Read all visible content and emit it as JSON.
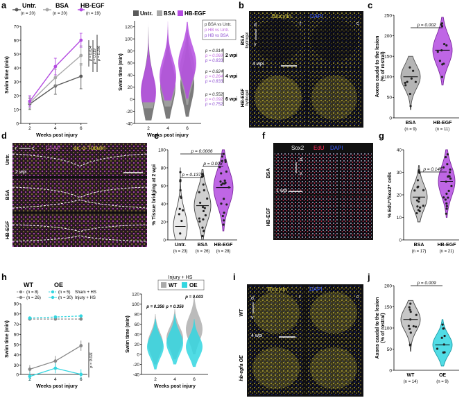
{
  "panels": {
    "a": "a",
    "b": "b",
    "c": "c",
    "d": "d",
    "e": "e",
    "f": "f",
    "g": "g",
    "h": "h",
    "i": "i",
    "j": "j"
  },
  "colors": {
    "untr": "#5a5a5a",
    "bsa": "#a8a8a8",
    "hbegf": "#b44be1",
    "wt": "#9a9a9a",
    "oe": "#33d6e0",
    "yellow": "#e8d83a",
    "blue": "#3a5bff",
    "magenta": "#d45ad8",
    "red": "#ff2a55"
  },
  "panel_a_legend": {
    "untr": "Untr.",
    "untr_n": "(n = 20)",
    "bsa": "BSA",
    "bsa_n": "(n = 20)",
    "hb": "HB-EGF",
    "hb_n": "(n = 19)"
  },
  "panel_a_stats": {
    "p1": "p = 0.024",
    "p2": "p = 0.219",
    "p3": "p = 0.296"
  },
  "panel_a2_legend": {
    "untr": "Untr.",
    "bsa": "BSA",
    "hb": "HB-EGF"
  },
  "panel_a2_box": {
    "l1": "p BSA vs Untr.",
    "l2": "p HB vs Untr.",
    "l3": "p HB vs BSA"
  },
  "panel_a2_pvals": {
    "w2": [
      "p = 0.914",
      "p = 0.069",
      "p = 0.833"
    ],
    "w2_label": "2 wpi",
    "w4": [
      "p = 0.624",
      "p = 0.264",
      "p = 0.833"
    ],
    "w4_label": "4 wpi",
    "w6": [
      "p = 0.552",
      "p = 0.092",
      "p = 0.752"
    ],
    "w6_label": "6 wpi"
  },
  "panel_b": {
    "title1": "Biocytin",
    "title2": "DAPI",
    "d": "d",
    "v": "v",
    "r": "r",
    "c": "c",
    "row1": "BSA hydrogel",
    "row1a": "BSA",
    "row1b": "hydrogel",
    "row2a": "HB-EGF",
    "row2b": "hydrogel",
    "wpi": "4 wpi"
  },
  "panel_c": {
    "ylabel1": "Axons caudal to the lesion",
    "ylabel2": "(% of rostral)",
    "p": "p = 0.002",
    "g1": "BSA",
    "g1n": "(n = 9)",
    "g2": "HB-EGF",
    "g2n": "(n = 11)"
  },
  "panel_d": {
    "t1": "GFAP",
    "t2": "ac. α-Tubulin",
    "r": "r",
    "c": "c",
    "row1": "Untr.",
    "row2": "BSA",
    "row3": "HB-EGF",
    "wpi": "2 wpi"
  },
  "panel_e": {
    "ylabel": "% Tissue bridging at 2 wpi",
    "p1": "p = 0.0006",
    "p2": "p = 0.008",
    "p3": "p = 0.137",
    "g1": "Untr.",
    "g1n": "(n = 23)",
    "g2": "BSA",
    "g2n": "(n = 26)",
    "g3": "HB-EGF",
    "g3n": "(n = 28)"
  },
  "panel_f": {
    "t1": "Sox2",
    "t2": "EdU",
    "t3": "DAPI",
    "d": "d",
    "v": "v",
    "row1": "BSA",
    "row2": "HB-EGF",
    "wpi": "1 wpi"
  },
  "panel_g": {
    "ylabel": "% EdU⁺/Sox2⁺ cells",
    "p": "p = 0.145",
    "g1": "BSA",
    "g1n": "(n = 17)",
    "g2": "HB-EGF",
    "g2n": "(n = 21)"
  },
  "panel_h_legend": {
    "wt": "WT",
    "oe": "OE",
    "n1": "(n = 8)",
    "n2": "(n = 5)",
    "n3": "(n = 26)",
    "n4": "(n = 30)",
    "sham": "Sham + HS",
    "inj": "Injury + HS",
    "p": "p = 0.011"
  },
  "panel_h2": {
    "title": "Injury + HS",
    "wt": "WT",
    "oe": "OE",
    "p1": "p = 0.356",
    "p2": "p = 0.356",
    "p3": "p = 0.003"
  },
  "panel_i": {
    "t1": "Biocytin",
    "t2": "DAPI",
    "d": "d",
    "v": "v",
    "r": "r",
    "c": "c",
    "row1": "WT",
    "row2": "hb-egfa OE",
    "wpi": "4 wpi"
  },
  "panel_j": {
    "ylabel1": "Axons caudal to the lesion",
    "ylabel2": "(% of rostral)",
    "p": "p = 0.009",
    "g1": "WT",
    "g1n": "(n = 14)",
    "g2": "OE",
    "g2n": "(n = 9)"
  },
  "chart_data": [
    {
      "id": "a_line",
      "type": "line",
      "xlabel": "Weeks post injury",
      "ylabel": "Swim time (min)",
      "x": [
        2,
        4,
        6
      ],
      "ylim": [
        0,
        70
      ],
      "series": [
        {
          "name": "Untr.",
          "values": [
            14,
            27,
            34
          ],
          "err": [
            4,
            6,
            9
          ]
        },
        {
          "name": "BSA",
          "values": [
            15,
            33,
            49
          ],
          "err": [
            4,
            6,
            7
          ]
        },
        {
          "name": "HB-EGF",
          "values": [
            16,
            41,
            60
          ],
          "err": [
            4,
            6,
            5
          ]
        }
      ]
    },
    {
      "id": "a_violin",
      "type": "violin",
      "xlabel": "Weeks post injury",
      "ylabel": "Swim time (min)",
      "categories": [
        "2",
        "4",
        "6"
      ],
      "ylim": [
        -40,
        130
      ],
      "series": [
        {
          "name": "Untr.",
          "median": [
            10,
            22,
            25
          ]
        },
        {
          "name": "BSA",
          "median": [
            10,
            28,
            48
          ]
        },
        {
          "name": "HB-EGF",
          "median": [
            12,
            38,
            60
          ]
        }
      ]
    },
    {
      "id": "c",
      "type": "violin",
      "ylabel": "Axons caudal to the lesion (% of rostral)",
      "categories": [
        "BSA",
        "HB-EGF"
      ],
      "ylim": [
        0,
        250
      ],
      "median": [
        100,
        165
      ]
    },
    {
      "id": "e",
      "type": "violin",
      "ylabel": "% Tissue bridging at 2 wpi",
      "categories": [
        "Untr.",
        "BSA",
        "HB-EGF"
      ],
      "ylim": [
        0,
        100
      ],
      "median": [
        15,
        38,
        58
      ]
    },
    {
      "id": "g",
      "type": "violin",
      "ylabel": "% EdU+/Sox2+ cells",
      "categories": [
        "BSA",
        "HB-EGF"
      ],
      "ylim": [
        0,
        40
      ],
      "median": [
        19,
        26
      ]
    },
    {
      "id": "h_line",
      "type": "line",
      "xlabel": "Weeks post injury",
      "ylabel": "Swim time (min)",
      "x": [
        2,
        4,
        6
      ],
      "ylim": [
        0,
        90
      ],
      "series": [
        {
          "name": "WT Sham + HS",
          "values": [
            75,
            75,
            75
          ]
        },
        {
          "name": "OE Sham + HS",
          "values": [
            76,
            77,
            78
          ]
        },
        {
          "name": "WT Injury + HS",
          "values": [
            26,
            34,
            49
          ],
          "err": [
            4,
            5,
            5
          ]
        },
        {
          "name": "OE Injury + HS",
          "values": [
            19,
            27,
            21
          ],
          "err": [
            4,
            5,
            5
          ]
        }
      ]
    },
    {
      "id": "h_violin",
      "type": "violin",
      "xlabel": "Weeks post injury",
      "ylabel": "Swim time (min)",
      "categories": [
        "2",
        "4",
        "6"
      ],
      "ylim": [
        -40,
        120
      ],
      "series": [
        {
          "name": "WT",
          "median": [
            22,
            32,
            50
          ]
        },
        {
          "name": "OE",
          "median": [
            15,
            22,
            15
          ]
        }
      ]
    },
    {
      "id": "j",
      "type": "violin",
      "ylabel": "Axons caudal to the lesion (% of rostral)",
      "categories": [
        "WT",
        "OE"
      ],
      "ylim": [
        0,
        200
      ],
      "median": [
        120,
        60
      ]
    }
  ],
  "axes": {
    "a_y": [
      "0",
      "10",
      "20",
      "30",
      "40",
      "50",
      "60",
      "70"
    ],
    "a_x": [
      "2",
      "4",
      "6"
    ],
    "a_xlabel": "Weeks post injury",
    "a_ylabel": "Swim time (min)",
    "a2_y": [
      "-40",
      "-20",
      "0",
      "20",
      "40",
      "60",
      "80",
      "100",
      "120"
    ],
    "c_y": [
      "0",
      "50",
      "100",
      "150",
      "200",
      "250"
    ],
    "e_y": [
      "0",
      "20",
      "40",
      "60",
      "80",
      "100"
    ],
    "g_y": [
      "0",
      "10",
      "20",
      "30",
      "40"
    ],
    "h_y": [
      "0",
      "30",
      "40",
      "50",
      "60",
      "70",
      "80",
      "90"
    ],
    "h2_y": [
      "-40",
      "-20",
      "0",
      "20",
      "40",
      "60",
      "80",
      "100",
      "120"
    ],
    "j_y": [
      "0",
      "50",
      "100",
      "150",
      "200"
    ]
  }
}
